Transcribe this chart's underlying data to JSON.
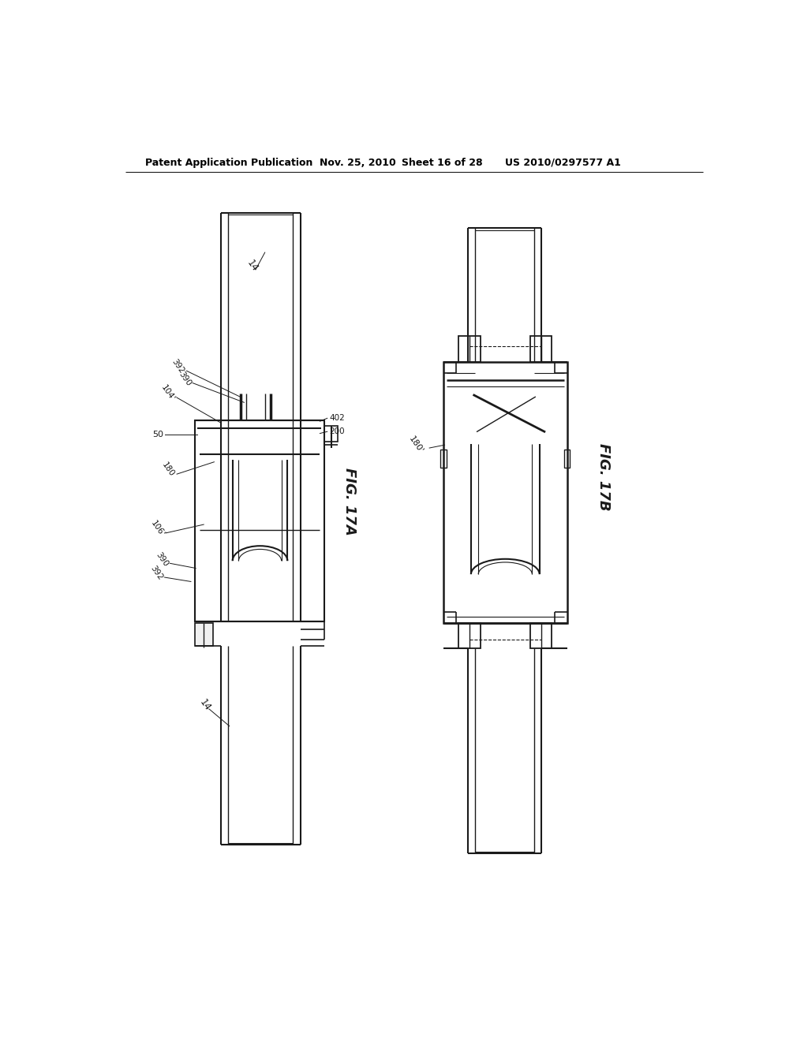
{
  "bg_color": "#ffffff",
  "line_color": "#1a1a1a",
  "header_text": "Patent Application Publication",
  "header_date": "Nov. 25, 2010",
  "header_sheet": "Sheet 16 of 28",
  "header_patent": "US 2010/0297577 A1",
  "fig17a_label": "FIG. 17A",
  "fig17b_label": "FIG. 17B"
}
